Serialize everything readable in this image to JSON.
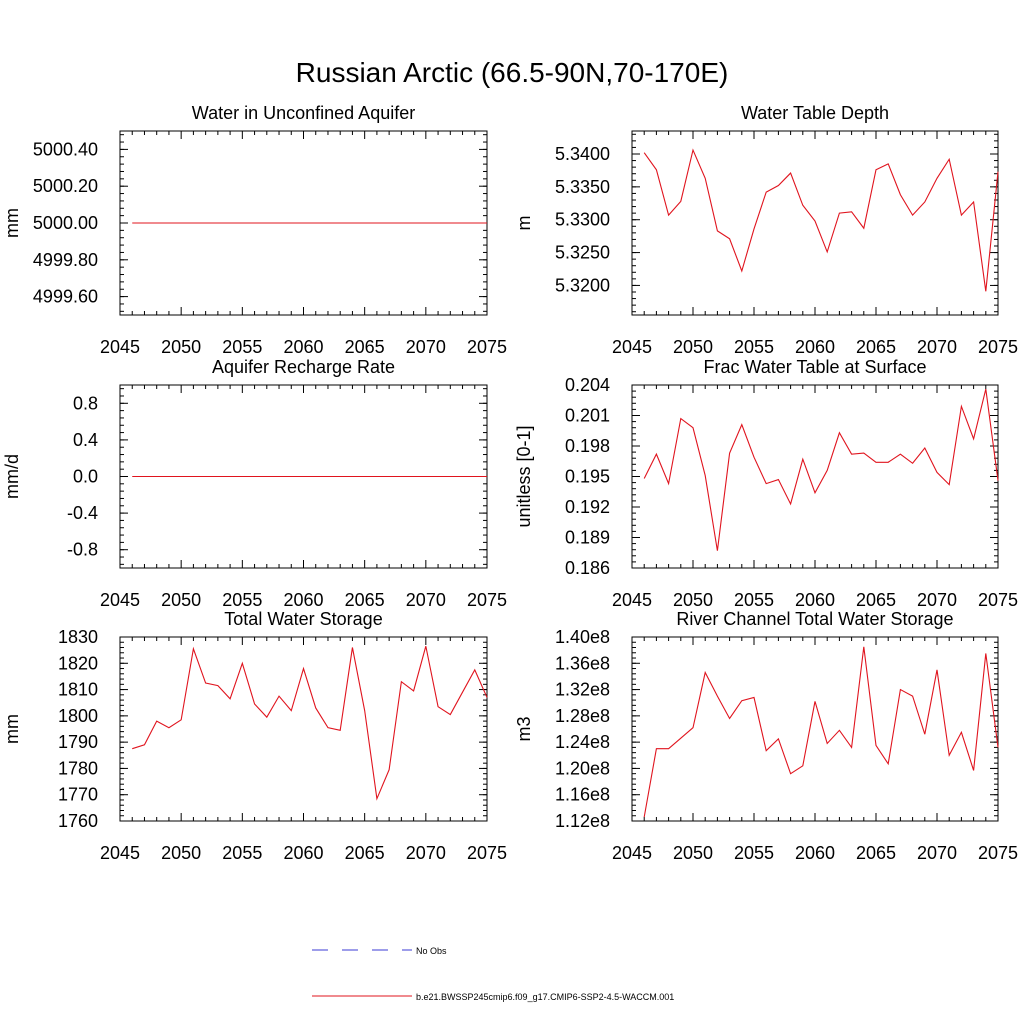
{
  "figure": {
    "title": "Russian Arctic (66.5-90N,70-170E)",
    "legend": [
      {
        "label": "No Obs",
        "color": "#3b3bd6",
        "style": "dashed"
      },
      {
        "label": "b.e21.BWSSP245cmip6.f09_g17.CMIP6-SSP2-4.5-WACCM.001",
        "color": "#e0141e",
        "style": "solid"
      }
    ],
    "series_color": "#e0141e"
  },
  "chart_data": [
    {
      "type": "line",
      "title": "Water in Unconfined Aquifer",
      "ylabel": "mm",
      "xlim": [
        2045,
        2075
      ],
      "ylim": [
        4999.5,
        5000.5
      ],
      "xticks": [
        2045,
        2050,
        2055,
        2060,
        2065,
        2070,
        2075
      ],
      "yticks": [
        4999.6,
        4999.8,
        5000.0,
        5000.2,
        5000.4
      ],
      "ytick_labels": [
        "4999.60",
        "4999.80",
        "5000.00",
        "5000.20",
        "5000.40"
      ],
      "x": [
        2046,
        2047,
        2048,
        2049,
        2050,
        2051,
        2052,
        2053,
        2054,
        2055,
        2056,
        2057,
        2058,
        2059,
        2060,
        2061,
        2062,
        2063,
        2064,
        2065,
        2066,
        2067,
        2068,
        2069,
        2070,
        2071,
        2072,
        2073,
        2074,
        2075
      ],
      "values": [
        5000,
        5000,
        5000,
        5000,
        5000,
        5000,
        5000,
        5000,
        5000,
        5000,
        5000,
        5000,
        5000,
        5000,
        5000,
        5000,
        5000,
        5000,
        5000,
        5000,
        5000,
        5000,
        5000,
        5000,
        5000,
        5000,
        5000,
        5000,
        5000,
        5000
      ]
    },
    {
      "type": "line",
      "title": "Water Table Depth",
      "ylabel": "m",
      "xlim": [
        2045,
        2075
      ],
      "ylim": [
        5.3155,
        5.3435
      ],
      "xticks": [
        2045,
        2050,
        2055,
        2060,
        2065,
        2070,
        2075
      ],
      "yticks": [
        5.32,
        5.325,
        5.33,
        5.335,
        5.34
      ],
      "ytick_labels": [
        "5.3200",
        "5.3250",
        "5.3300",
        "5.3350",
        "5.3400"
      ],
      "x": [
        2046,
        2047,
        2048,
        2049,
        2050,
        2051,
        2052,
        2053,
        2054,
        2055,
        2056,
        2057,
        2058,
        2059,
        2060,
        2061,
        2062,
        2063,
        2064,
        2065,
        2066,
        2067,
        2068,
        2069,
        2070,
        2071,
        2072,
        2073,
        2074,
        2075
      ],
      "values": [
        5.3402,
        5.3376,
        5.3307,
        5.3328,
        5.3406,
        5.3363,
        5.3283,
        5.3271,
        5.3222,
        5.3286,
        5.3342,
        5.3352,
        5.3371,
        5.3322,
        5.3298,
        5.3251,
        5.331,
        5.3312,
        5.3287,
        5.3376,
        5.3385,
        5.3338,
        5.3307,
        5.3327,
        5.3363,
        5.3392,
        5.3307,
        5.3327,
        5.3191,
        5.3373
      ]
    },
    {
      "type": "line",
      "title": "Aquifer Recharge Rate",
      "ylabel": "mm/d",
      "xlim": [
        2045,
        2075
      ],
      "ylim": [
        -1.0,
        1.0
      ],
      "xticks": [
        2045,
        2050,
        2055,
        2060,
        2065,
        2070,
        2075
      ],
      "yticks": [
        -0.8,
        -0.4,
        0.0,
        0.4,
        0.8
      ],
      "ytick_labels": [
        "-0.8",
        "-0.4",
        "0.0",
        "0.4",
        "0.8"
      ],
      "x": [
        2046,
        2047,
        2048,
        2049,
        2050,
        2051,
        2052,
        2053,
        2054,
        2055,
        2056,
        2057,
        2058,
        2059,
        2060,
        2061,
        2062,
        2063,
        2064,
        2065,
        2066,
        2067,
        2068,
        2069,
        2070,
        2071,
        2072,
        2073,
        2074,
        2075
      ],
      "values": [
        0,
        0,
        0,
        0,
        0,
        0,
        0,
        0,
        0,
        0,
        0,
        0,
        0,
        0,
        0,
        0,
        0,
        0,
        0,
        0,
        0,
        0,
        0,
        0,
        0,
        0,
        0,
        0,
        0,
        0
      ]
    },
    {
      "type": "line",
      "title": "Frac Water Table at Surface",
      "ylabel": "unitless [0-1]",
      "xlim": [
        2045,
        2075
      ],
      "ylim": [
        0.186,
        0.204
      ],
      "xticks": [
        2045,
        2050,
        2055,
        2060,
        2065,
        2070,
        2075
      ],
      "yticks": [
        0.186,
        0.189,
        0.192,
        0.195,
        0.198,
        0.201,
        0.204
      ],
      "ytick_labels": [
        "0.186",
        "0.189",
        "0.192",
        "0.195",
        "0.198",
        "0.201",
        "0.204"
      ],
      "x": [
        2046,
        2047,
        2048,
        2049,
        2050,
        2051,
        2052,
        2053,
        2054,
        2055,
        2056,
        2057,
        2058,
        2059,
        2060,
        2061,
        2062,
        2063,
        2064,
        2065,
        2066,
        2067,
        2068,
        2069,
        2070,
        2071,
        2072,
        2073,
        2074,
        2075
      ],
      "values": [
        0.1948,
        0.1972,
        0.1943,
        0.2007,
        0.1998,
        0.1951,
        0.1877,
        0.1973,
        0.2001,
        0.1969,
        0.1943,
        0.1947,
        0.1923,
        0.1967,
        0.1934,
        0.1956,
        0.1993,
        0.1972,
        0.1973,
        0.1964,
        0.1964,
        0.1972,
        0.1963,
        0.1978,
        0.1954,
        0.1942,
        0.2019,
        0.1987,
        0.2036,
        0.1946
      ]
    },
    {
      "type": "line",
      "title": "Total Water Storage",
      "ylabel": "mm",
      "xlim": [
        2045,
        2075
      ],
      "ylim": [
        1760,
        1830
      ],
      "xticks": [
        2045,
        2050,
        2055,
        2060,
        2065,
        2070,
        2075
      ],
      "yticks": [
        1760,
        1770,
        1780,
        1790,
        1800,
        1810,
        1820,
        1830
      ],
      "ytick_labels": [
        "1760",
        "1770",
        "1780",
        "1790",
        "1800",
        "1810",
        "1820",
        "1830"
      ],
      "x": [
        2046,
        2047,
        2048,
        2049,
        2050,
        2051,
        2052,
        2053,
        2054,
        2055,
        2056,
        2057,
        2058,
        2059,
        2060,
        2061,
        2062,
        2063,
        2064,
        2065,
        2066,
        2067,
        2068,
        2069,
        2070,
        2071,
        2072,
        2073,
        2074,
        2075
      ],
      "values": [
        1787.5,
        1789,
        1798,
        1795.5,
        1798.5,
        1825.5,
        1812.5,
        1811.5,
        1806.5,
        1820,
        1804.5,
        1799.5,
        1807.5,
        1802,
        1818,
        1803,
        1795.5,
        1794.5,
        1826,
        1802,
        1768.5,
        1779.5,
        1813,
        1809.5,
        1826.5,
        1803.5,
        1800.5,
        1809,
        1817.5,
        1807
      ]
    },
    {
      "type": "line",
      "title": "River Channel Total Water Storage",
      "ylabel": "m3",
      "xlim": [
        2045,
        2075
      ],
      "ylim": [
        112000000.0,
        140000000.0
      ],
      "xticks": [
        2045,
        2050,
        2055,
        2060,
        2065,
        2070,
        2075
      ],
      "yticks": [
        112000000.0,
        116000000.0,
        120000000.0,
        124000000.0,
        128000000.0,
        132000000.0,
        136000000.0,
        140000000.0
      ],
      "ytick_labels": [
        "1.12e8",
        "1.16e8",
        "1.20e8",
        "1.24e8",
        "1.28e8",
        "1.32e8",
        "1.36e8",
        "1.40e8"
      ],
      "x": [
        2046,
        2047,
        2048,
        2049,
        2050,
        2051,
        2052,
        2053,
        2054,
        2055,
        2056,
        2057,
        2058,
        2059,
        2060,
        2061,
        2062,
        2063,
        2064,
        2065,
        2066,
        2067,
        2068,
        2069,
        2070,
        2071,
        2072,
        2073,
        2074,
        2075
      ],
      "values": [
        112600000.0,
        123000000.0,
        123000000.0,
        124600000.0,
        126200000.0,
        134600000.0,
        131000000.0,
        127600000.0,
        130300000.0,
        130800000.0,
        122700000.0,
        124500000.0,
        119200000.0,
        120400000.0,
        130200000.0,
        123800000.0,
        125800000.0,
        123200000.0,
        138500000.0,
        123500000.0,
        120700000.0,
        132000000.0,
        131000000.0,
        125200000.0,
        135000000.0,
        122000000.0,
        125500000.0,
        119700000.0,
        137500000.0,
        123200000.0
      ]
    }
  ]
}
